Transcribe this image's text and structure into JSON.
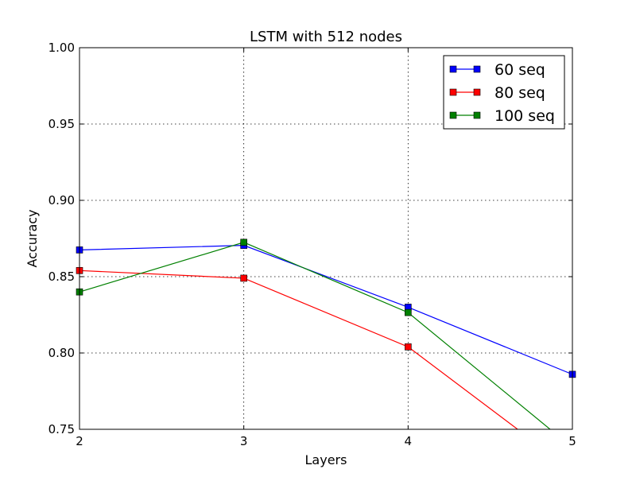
{
  "chart_data": {
    "type": "line",
    "title": "LSTM with 512 nodes",
    "xlabel": "Layers",
    "ylabel": "Accuracy",
    "x": [
      2,
      3,
      4,
      5
    ],
    "xlim": [
      2,
      5
    ],
    "ylim": [
      0.75,
      1.0
    ],
    "xticks": [
      "2",
      "3",
      "4",
      "5"
    ],
    "yticks": [
      "0.75",
      "0.80",
      "0.85",
      "0.90",
      "0.95",
      "1.00"
    ],
    "grid": true,
    "legend_position": "top-right",
    "series": [
      {
        "name": "60 seq",
        "color": "#0000ff",
        "marker": "square",
        "values": [
          0.8675,
          0.8705,
          0.83,
          0.786
        ]
      },
      {
        "name": "80 seq",
        "color": "#ff0000",
        "marker": "square",
        "values": [
          0.854,
          0.849,
          0.804,
          0.723
        ]
      },
      {
        "name": "100 seq",
        "color": "#008000",
        "marker": "square",
        "values": [
          0.84,
          0.8725,
          0.8265,
          0.738
        ]
      }
    ]
  }
}
